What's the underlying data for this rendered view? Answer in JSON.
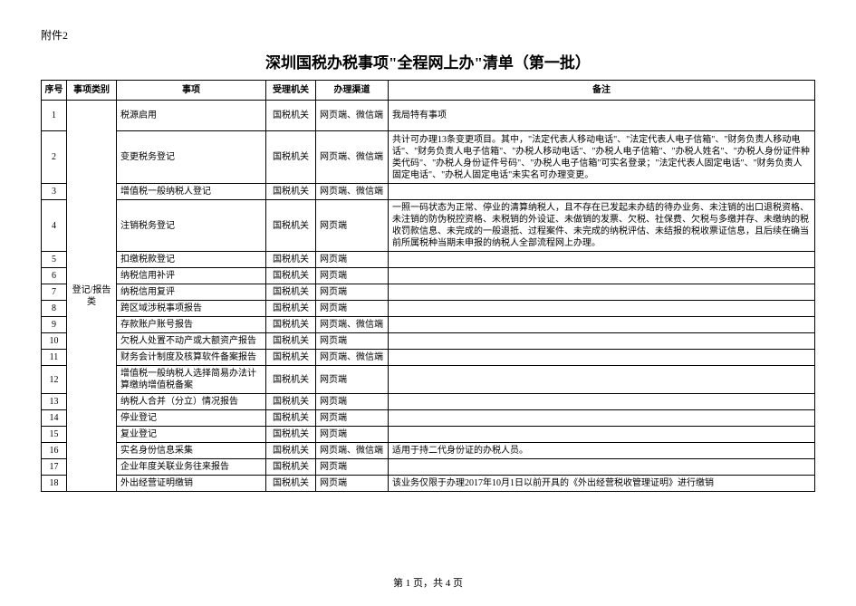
{
  "attachment_label": "附件2",
  "title": "深圳国税办税事项\"全程网上办\"清单（第一批）",
  "headers": {
    "seq": "序号",
    "category": "事项类别",
    "item": "事项",
    "org": "受理机关",
    "channel": "办理渠道",
    "remark": "备注"
  },
  "category_label": "登记/报告类",
  "rows": {
    "r1": {
      "seq": "1",
      "item": "税源启用",
      "org": "国税机关",
      "channel": "网页端、微信端",
      "remark": "我局特有事项"
    },
    "r2": {
      "seq": "2",
      "item": "变更税务登记",
      "org": "国税机关",
      "channel": "网页端、微信端",
      "remark": "共计可办理13条变更项目。其中，\"法定代表人移动电话\"、\"法定代表人电子信箱\"、\"财务负责人移动电话\"、\"财务负责人电子信箱\"、\"办税人移动电话\"、\"办税人电子信箱\"、\"办税人姓名\"、\"办税人身份证件种类代码\"、\"办税人身份证件号码\"、\"办税人电子信箱\"可实名登录；\"法定代表人固定电话\"、\"财务负责人固定电话\"、\"办税人固定电话\"未实名可办理变更。"
    },
    "r3": {
      "seq": "3",
      "item": "增值税一般纳税人登记",
      "org": "国税机关",
      "channel": "网页端、微信端",
      "remark": ""
    },
    "r4": {
      "seq": "4",
      "item": "注销税务登记",
      "org": "国税机关",
      "channel": "网页端",
      "remark": "一照一码状态为正常、停业的清算纳税人，且不存在已发起未办结的待办业务、未注销的出口退税资格、未注销的防伪税控资格、未税销的外设证、未做销的发票、欠税、社保费、欠税与多缴并存、未缴纳的税收罚款信息、未完成的一般退抵、过程案件、未完成的纳税评估、未结报的税收票证信息，且后续在确当前所属税种当期未申报的纳税人全部流程网上办理。"
    },
    "r5": {
      "seq": "5",
      "item": "扣缴税款登记",
      "org": "国税机关",
      "channel": "网页端",
      "remark": ""
    },
    "r6": {
      "seq": "6",
      "item": "纳税信用补评",
      "org": "国税机关",
      "channel": "网页端",
      "remark": ""
    },
    "r7": {
      "seq": "7",
      "item": "纳税信用复评",
      "org": "国税机关",
      "channel": "网页端",
      "remark": ""
    },
    "r8": {
      "seq": "8",
      "item": "跨区域涉税事项报告",
      "org": "国税机关",
      "channel": "网页端",
      "remark": ""
    },
    "r9": {
      "seq": "9",
      "item": "存款账户账号报告",
      "org": "国税机关",
      "channel": "网页端、微信端",
      "remark": ""
    },
    "r10": {
      "seq": "10",
      "item": "欠税人处置不动产或大额资产报告",
      "org": "国税机关",
      "channel": "网页端",
      "remark": ""
    },
    "r11": {
      "seq": "11",
      "item": "财务会计制度及核算软件备案报告",
      "org": "国税机关",
      "channel": "网页端、微信端",
      "remark": ""
    },
    "r12": {
      "seq": "12",
      "item": "增值税一般纳税人选择简易办法计算缴纳增值税备案",
      "org": "国税机关",
      "channel": "网页端",
      "remark": ""
    },
    "r13": {
      "seq": "13",
      "item": "纳税人合并（分立）情况报告",
      "org": "国税机关",
      "channel": "网页端",
      "remark": ""
    },
    "r14": {
      "seq": "14",
      "item": "停业登记",
      "org": "国税机关",
      "channel": "网页端",
      "remark": ""
    },
    "r15": {
      "seq": "15",
      "item": "复业登记",
      "org": "国税机关",
      "channel": "网页端",
      "remark": ""
    },
    "r16": {
      "seq": "16",
      "item": "实名身份信息采集",
      "org": "国税机关",
      "channel": "网页端、微信端",
      "remark": "适用于持二代身份证的办税人员。"
    },
    "r17": {
      "seq": "17",
      "item": "企业年度关联业务往来报告",
      "org": "国税机关",
      "channel": "网页端",
      "remark": ""
    },
    "r18": {
      "seq": "18",
      "item": "外出经营证明缴销",
      "org": "国税机关",
      "channel": "网页端",
      "remark": "该业务仅限于办理2017年10月1日以前开具的《外出经营税收管理证明》进行缴销"
    }
  },
  "footer": "第 1 页，共 4 页"
}
